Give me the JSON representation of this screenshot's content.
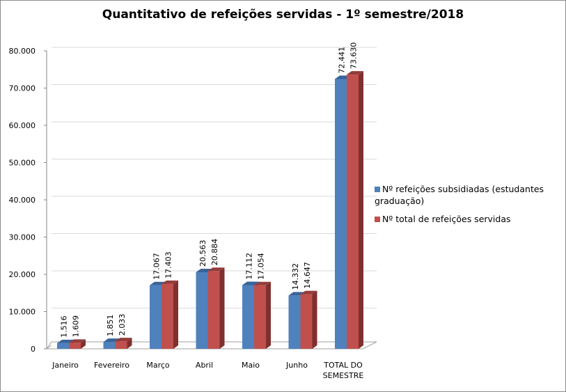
{
  "chart_data": {
    "type": "bar",
    "title": "Quantitativo  de refeições servidas - 1º semestre/2018",
    "categories": [
      "Janeiro",
      "Fevereiro",
      "Março",
      "Abril",
      "Maio",
      "Junho",
      "TOTAL DO SEMESTRE"
    ],
    "series": [
      {
        "name": "Nº refeições subsidiadas (estudantes graduação)",
        "color": "#4f81bd",
        "values": [
          1516,
          1851,
          17067,
          20563,
          17112,
          14332,
          72441
        ],
        "labels": [
          "1.516",
          "1.851",
          "17.067",
          "20.563",
          "17.112",
          "14.332",
          "72.441"
        ]
      },
      {
        "name": "Nº total de refeições servidas",
        "color": "#c0504d",
        "values": [
          1609,
          2033,
          17403,
          20884,
          17054,
          14647,
          73630
        ],
        "labels": [
          "1.609",
          "2.033",
          "17.403",
          "20.884",
          "17.054",
          "14.647",
          "73.630"
        ]
      }
    ],
    "ylim": [
      0,
      80000
    ],
    "yticks": [
      "0",
      "10.000",
      "20.000",
      "30.000",
      "40.000",
      "50.000",
      "60.000",
      "70.000",
      "80.000"
    ],
    "grid": true,
    "legend_position": "right",
    "style": "3d-column"
  }
}
